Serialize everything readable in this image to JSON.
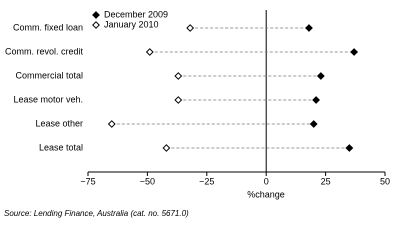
{
  "chart_data": {
    "type": "dot",
    "categories": [
      "Comm. fixed loan",
      "Comm. revol. credit",
      "Commercial total",
      "Lease motor veh.",
      "Lease other",
      "Lease total"
    ],
    "series": [
      {
        "name": "December 2009",
        "color": "#000000",
        "marker": "filled-diamond",
        "values": [
          18,
          37,
          23,
          21,
          20,
          35
        ]
      },
      {
        "name": "January 2010",
        "color": "#000000",
        "marker": "open-diamond",
        "values": [
          -32,
          -49,
          -37,
          -37,
          -65,
          -42
        ]
      }
    ],
    "xlabel": "%change",
    "xlim": [
      -75,
      50
    ],
    "xticks": [
      {
        "value": -75,
        "label": "−75"
      },
      {
        "value": -50,
        "label": "−50"
      },
      {
        "value": -25,
        "label": "−25"
      },
      0,
      25,
      50
    ],
    "legend": "upper left",
    "source": "Source: Lending Finance, Australia (cat. no. 5671.0)"
  }
}
